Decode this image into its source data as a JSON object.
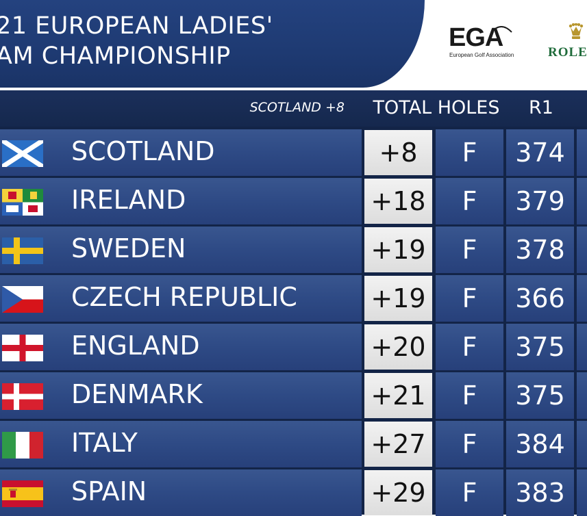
{
  "title": {
    "line1": "21 EUROPEAN LADIES'",
    "line2": "AM CHAMPIONSHIP"
  },
  "sponsors": {
    "ega_logo": "EGA",
    "ega_tagline": "European Golf Association",
    "rolex_logo": "ROLE",
    "rolex_crown_icon": "crown-icon"
  },
  "leaderboard": {
    "leader_text": "SCOTLAND +8",
    "columns": {
      "total_holes": "TOTAL HOLES",
      "r1": "R1"
    },
    "rows": [
      {
        "flag": "scotland-flag-icon",
        "team": "SCOTLAND",
        "total": "+8",
        "holes": "F",
        "r1": "374"
      },
      {
        "flag": "ireland-flag-icon",
        "team": "IRELAND",
        "total": "+18",
        "holes": "F",
        "r1": "379"
      },
      {
        "flag": "sweden-flag-icon",
        "team": "SWEDEN",
        "total": "+19",
        "holes": "F",
        "r1": "378"
      },
      {
        "flag": "czech-republic-flag-icon",
        "team": "CZECH REPUBLIC",
        "total": "+19",
        "holes": "F",
        "r1": "366"
      },
      {
        "flag": "england-flag-icon",
        "team": "ENGLAND",
        "total": "+20",
        "holes": "F",
        "r1": "375"
      },
      {
        "flag": "denmark-flag-icon",
        "team": "DENMARK",
        "total": "+21",
        "holes": "F",
        "r1": "375"
      },
      {
        "flag": "italy-flag-icon",
        "team": "ITALY",
        "total": "+27",
        "holes": "F",
        "r1": "384"
      },
      {
        "flag": "spain-flag-icon",
        "team": "SPAIN",
        "total": "+29",
        "holes": "F",
        "r1": "383"
      }
    ]
  },
  "colors": {
    "banner": "#1e3a72",
    "row_blue": "#2e4a85",
    "score_cell": "#e6e6e6",
    "rolex_green": "#1f6b3a"
  }
}
